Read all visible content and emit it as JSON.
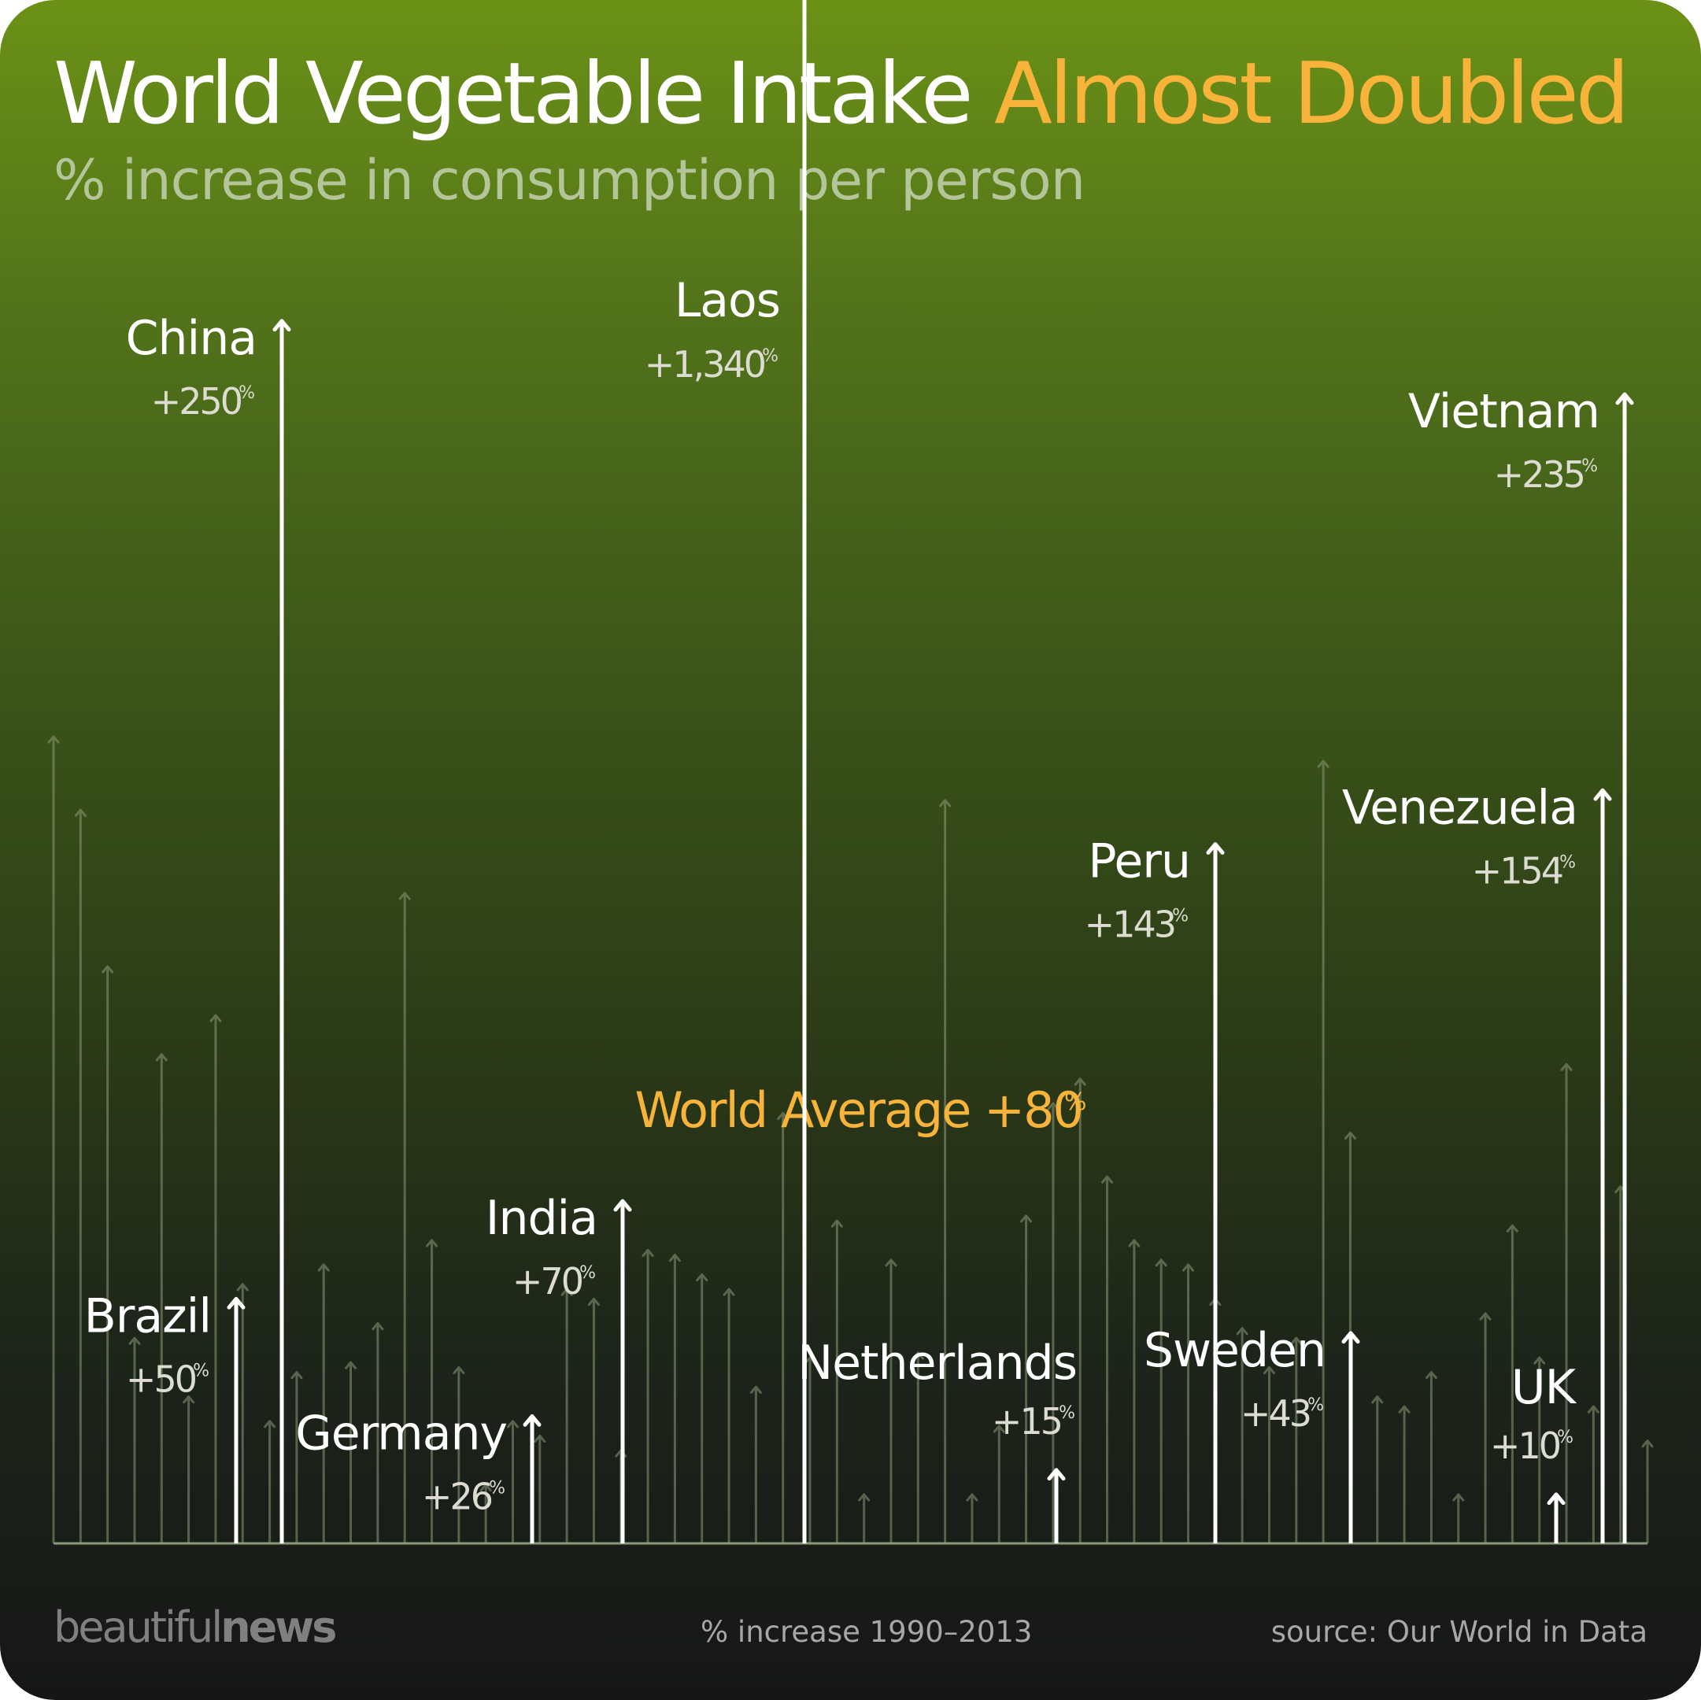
{
  "title_part1": "World Vegetable Intake",
  "title_part2": "Almost Doubled",
  "subtitle": "% increase in consumption per person",
  "footer": {
    "logo_light": "beautiful",
    "logo_bold": "news",
    "period": "% increase 1990–2013",
    "source": "source: Our World in Data"
  },
  "colors": {
    "accent": "#f8b33a",
    "highlight": "#ffffff",
    "background_arrow": "#8a9a78",
    "average_gradient": [
      "#d9560f",
      "#f4a32a",
      "#e9cc2c"
    ]
  },
  "chart_data": {
    "type": "bar",
    "note": "arrow/lollipop chart; each arrow = one country's % increase in vegetable consumption per person 1990–2013",
    "world_average": {
      "label": "World Average",
      "value": 80,
      "display": "+80",
      "unit": "%"
    },
    "highlighted": [
      {
        "name": "Brazil",
        "value": 50,
        "display": "+50"
      },
      {
        "name": "China",
        "value": 250,
        "display": "+250"
      },
      {
        "name": "Germany",
        "value": 26,
        "display": "+26"
      },
      {
        "name": "India",
        "value": 70,
        "display": "+70"
      },
      {
        "name": "Laos",
        "value": 1340,
        "display": "+1,340"
      },
      {
        "name": "Netherlands",
        "value": 15,
        "display": "+15"
      },
      {
        "name": "Peru",
        "value": 143,
        "display": "+143"
      },
      {
        "name": "Sweden",
        "value": 43,
        "display": "+43"
      },
      {
        "name": "UK",
        "value": 10,
        "display": "+10"
      },
      {
        "name": "Venezuela",
        "value": 154,
        "display": "+154"
      },
      {
        "name": "Vietnam",
        "value": 235,
        "display": "+235"
      }
    ],
    "background_values": [
      165,
      150,
      118,
      42,
      100,
      30,
      108,
      53,
      25,
      35,
      57,
      37,
      45,
      133,
      62,
      36,
      12,
      25,
      22,
      52,
      50,
      19,
      60,
      59,
      55,
      52,
      32,
      88,
      38,
      66,
      10,
      58,
      39,
      152,
      10,
      24,
      67,
      90,
      95,
      75,
      62,
      58,
      57,
      50,
      44,
      36,
      42,
      160,
      84,
      30,
      28,
      35,
      10,
      47,
      65,
      38,
      98,
      28,
      73,
      21
    ]
  }
}
